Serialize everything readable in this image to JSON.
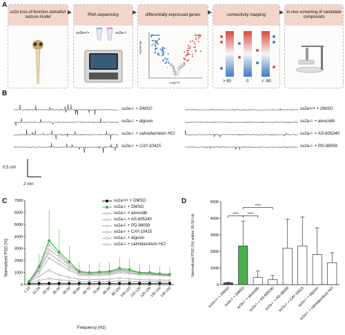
{
  "panel_a": {
    "letter": "A",
    "steps": [
      {
        "title": "sv2a loss-of-function zebrafish seizure model"
      },
      {
        "title": "RNA sequencing",
        "tube_labels": [
          "sv2a+/+",
          "sv2a-/-"
        ]
      },
      {
        "title": "differentially expressed genes",
        "ylabel": "-log10(Padj)",
        "xlabel": "Log2 FC"
      },
      {
        "title": "connectivity mapping",
        "scores": [
          "> 90",
          "0",
          "< -90"
        ]
      },
      {
        "title": "in vivo screening of candidate compounds"
      }
    ]
  },
  "panel_b": {
    "letter": "B",
    "left_traces": [
      "sv2a-/- + DMSO",
      "sv2a-/- + digoxin",
      "sv2a-/- + calmidazolium HCl",
      "sv2a-/- + CAY-10415"
    ],
    "right_traces": [
      "sv2a+/+ + DMSO",
      "sv2a-/- + alvocidib",
      "sv2a-/- + AS-605240",
      "sv2a-/- + PD-98059"
    ],
    "scale_mv": "0.5 mV",
    "scale_time": "2 min"
  },
  "panel_c": {
    "letter": "C",
    "legend": [
      "sv2a+/+ + DMSO",
      "sv2a-/- + DMSO",
      "sv2a-/- + alvocidib",
      "sv2a-/- + AS-605240",
      "sv2a-/- + PD-98059",
      "sv2a-/- + CAY-10415",
      "sv2a-/- + digoxin",
      "sv2a-/- + calmidazolium HCl"
    ],
    "colors": [
      "#111111",
      "#4caf50",
      "#9e9e9e",
      "#9e9e9e",
      "#9e9e9e",
      "#9e9e9e",
      "#9e9e9e",
      "#9e9e9e"
    ]
  },
  "panel_d": {
    "letter": "D",
    "significance": "****"
  },
  "chart_data": [
    {
      "type": "line",
      "title": "",
      "xlabel": "Frequency (Hz)",
      "ylabel": "Normalized PSD (%)",
      "ylim": [
        0,
        7000
      ],
      "yticks": [
        "0",
        "1000",
        "2000",
        "3000",
        "4000",
        "5000",
        "6000",
        "7000"
      ],
      "categories": [
        "1-10",
        "10-20",
        "20-30",
        "30-40",
        "40-50",
        "50-60",
        "60-70",
        "70-80",
        "80-90",
        "90-100",
        "100-110",
        "110-120",
        "120-130",
        "130-140",
        "140-150"
      ],
      "series": [
        {
          "name": "sv2a+/+ + DMSO",
          "values": [
            100,
            100,
            100,
            100,
            100,
            100,
            100,
            100,
            100,
            100,
            100,
            100,
            100,
            100,
            100
          ]
        },
        {
          "name": "sv2a-/- + DMSO",
          "values": [
            250,
            1500,
            3650,
            2700,
            1900,
            1100,
            1000,
            1050,
            1100,
            1350,
            1250,
            1000,
            1000,
            900,
            850
          ]
        },
        {
          "name": "sv2a-/- + alvocidib",
          "values": [
            200,
            700,
            1200,
            800,
            600,
            450,
            420,
            420,
            450,
            550,
            480,
            420,
            400,
            380,
            350
          ]
        },
        {
          "name": "sv2a-/- + AS-605240",
          "values": [
            150,
            350,
            500,
            400,
            320,
            260,
            250,
            250,
            260,
            300,
            280,
            260,
            250,
            240,
            230
          ]
        },
        {
          "name": "sv2a-/- + PD-98059",
          "values": [
            250,
            1300,
            2900,
            2300,
            1600,
            1000,
            900,
            950,
            1000,
            1200,
            1100,
            950,
            900,
            850,
            800
          ]
        },
        {
          "name": "sv2a-/- + CAY-10415",
          "values": [
            250,
            1400,
            3300,
            2500,
            1700,
            1050,
            950,
            1000,
            1050,
            1250,
            1150,
            980,
            950,
            880,
            820
          ]
        },
        {
          "name": "sv2a-/- + digoxin",
          "values": [
            230,
            1200,
            2600,
            2000,
            1400,
            900,
            820,
            870,
            900,
            1100,
            1000,
            880,
            850,
            800,
            760
          ]
        },
        {
          "name": "sv2a-/- + calmidazolium HCl",
          "values": [
            220,
            1000,
            2200,
            1700,
            1200,
            800,
            750,
            780,
            820,
            1000,
            920,
            820,
            800,
            760,
            720
          ]
        }
      ]
    },
    {
      "type": "bar",
      "title": "",
      "xlabel": "",
      "ylabel": "Normalized PSD (%) within 20-50 Hz",
      "ylim": [
        0,
        5000
      ],
      "yticks": [
        "0",
        "1000",
        "2000",
        "3000",
        "4000",
        "5000"
      ],
      "categories": [
        "sv2a+/+ + DMSO",
        "sv2a-/- + DMSO",
        "sv2a-/- + alvocidib",
        "sv2a-/- + AS-605240",
        "sv2a-/- + PD-98059",
        "sv2a-/- + CAY-10415",
        "sv2a-/- + digoxin",
        "sv2a-/- + calmidazolium HCl"
      ],
      "values": [
        100,
        2330,
        430,
        300,
        2200,
        2330,
        1820,
        1320
      ],
      "errors": [
        40,
        1500,
        400,
        250,
        1750,
        1750,
        1600,
        600
      ],
      "colors": [
        "#424242",
        "#4caf50",
        "#ffffff",
        "#ffffff",
        "#ffffff",
        "#ffffff",
        "#ffffff",
        "#ffffff"
      ]
    }
  ]
}
